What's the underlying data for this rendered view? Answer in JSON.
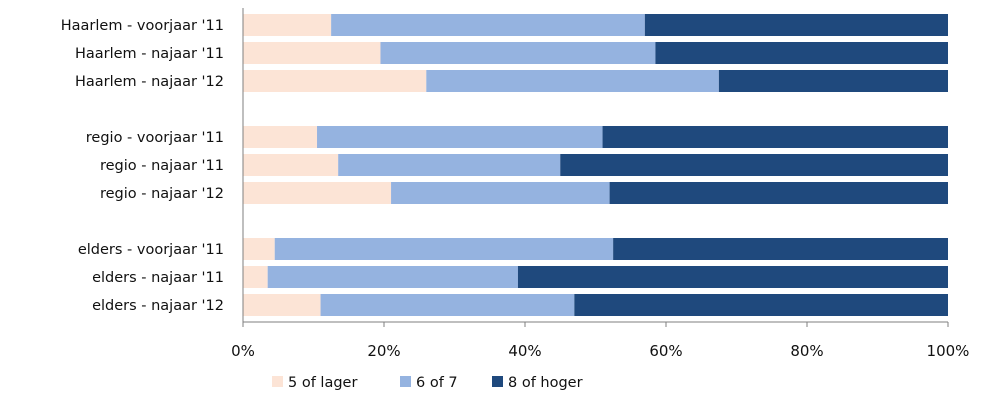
{
  "chart_data": {
    "type": "bar",
    "orientation": "horizontal",
    "stacked": true,
    "percent_stacked": true,
    "categories": [
      "Haarlem - voorjaar '11",
      "Haarlem - najaar '11",
      "Haarlem - najaar '12",
      "",
      "regio - voorjaar '11",
      "regio - najaar '11",
      "regio - najaar '12",
      "",
      "elders - voorjaar '11",
      "elders - najaar '11",
      "elders - najaar '12"
    ],
    "series": [
      {
        "name": "5 of lager",
        "color": "#fce4d6",
        "values": [
          12.5,
          19.5,
          26.0,
          null,
          10.5,
          13.5,
          21.0,
          null,
          4.5,
          3.5,
          11.0
        ]
      },
      {
        "name": "6 of 7",
        "color": "#95b3e0",
        "values": [
          44.5,
          39.0,
          41.5,
          null,
          40.5,
          31.5,
          31.0,
          null,
          48.0,
          35.5,
          36.0
        ]
      },
      {
        "name": "8 of hoger",
        "color": "#1f497d",
        "values": [
          43.0,
          41.5,
          32.5,
          null,
          49.0,
          55.0,
          48.0,
          null,
          47.5,
          61.0,
          53.0
        ]
      }
    ],
    "xlim": [
      0,
      100
    ],
    "x_ticks": [
      "0%",
      "20%",
      "40%",
      "60%",
      "80%",
      "100%"
    ],
    "grid": false,
    "legend_position": "bottom"
  }
}
